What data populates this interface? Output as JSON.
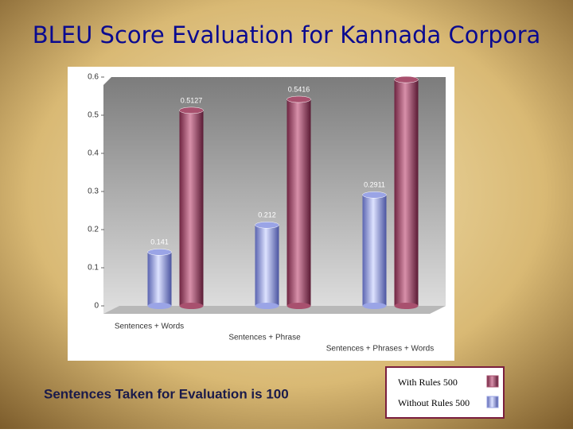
{
  "chart_data": {
    "type": "bar",
    "title": "BLEU Score Evaluation for Kannada Corpora",
    "categories": [
      "Sentences + Words",
      "Sentences + Phrase",
      "Sentences + Phrases + Words"
    ],
    "series": [
      {
        "name": "Without Rules 500",
        "color": "#9aa4e6",
        "values": [
          0.141,
          0.212,
          0.2911
        ]
      },
      {
        "name": "With Rules 500",
        "color": "#a8506e",
        "values": [
          0.5127,
          0.5416,
          0.5935
        ]
      }
    ],
    "ylim": [
      0,
      0.6
    ],
    "yticks": [
      0,
      0.1,
      0.2,
      0.3,
      0.4,
      0.5,
      0.6
    ],
    "grid": false,
    "note": "Sentences Taken for Evaluation is  100"
  }
}
